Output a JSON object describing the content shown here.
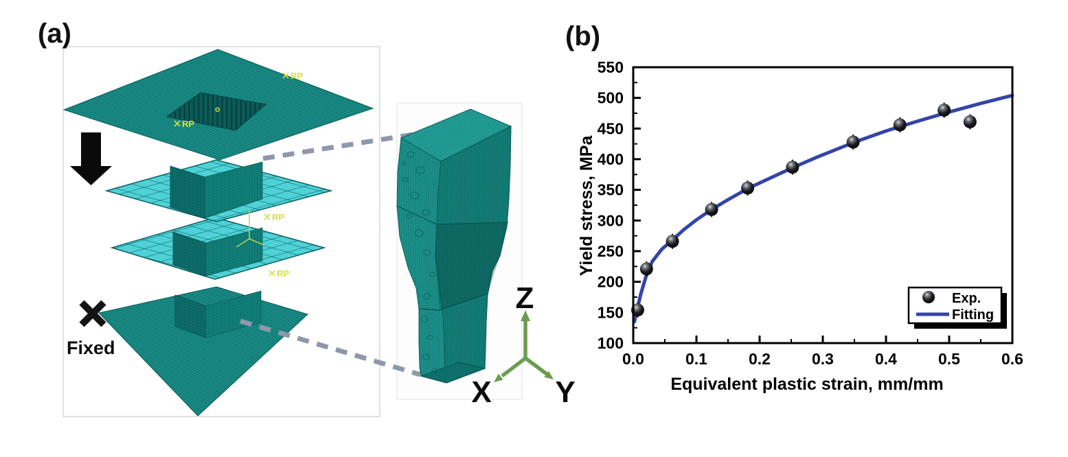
{
  "figure": {
    "panel_a": {
      "label": "(a)",
      "fixed_label": "Fixed",
      "rp_label": "RP",
      "origin_label": "o",
      "axis_labels": {
        "x": "X",
        "y": "Y",
        "z": "Z"
      }
    },
    "panel_b": {
      "label": "(b)"
    }
  },
  "chart_data": {
    "type": "scatter",
    "title": "",
    "xlabel": "Equivalent plastic strain, mm/mm",
    "ylabel": "Yield stress, MPa",
    "xlim": [
      0,
      0.6
    ],
    "ylim": [
      100,
      550
    ],
    "x_tick_step": 0.1,
    "x_minor_step": 0.05,
    "y_tick_step": 50,
    "y_minor_step": 25,
    "x_tick_labels": [
      "0.0",
      "0.1",
      "0.2",
      "0.3",
      "0.4",
      "0.5",
      "0.6"
    ],
    "y_tick_labels": [
      "100",
      "150",
      "200",
      "250",
      "300",
      "350",
      "400",
      "450",
      "500",
      "550"
    ],
    "grid": false,
    "legend_position": "lower right",
    "series": [
      {
        "name": "Exp.",
        "type": "scatter",
        "marker": "sphere",
        "color": "#111111",
        "error_mpa": 10,
        "points": [
          [
            0.007,
            154
          ],
          [
            0.021,
            221
          ],
          [
            0.062,
            266
          ],
          [
            0.124,
            318
          ],
          [
            0.181,
            353
          ],
          [
            0.252,
            387
          ],
          [
            0.348,
            428
          ],
          [
            0.422,
            456
          ],
          [
            0.492,
            480
          ],
          [
            0.533,
            461
          ]
        ]
      },
      {
        "name": "Fitting",
        "type": "line",
        "color": "#3444a8",
        "width": 5,
        "points": [
          [
            0.002,
            135
          ],
          [
            0.005,
            152
          ],
          [
            0.008,
            163
          ],
          [
            0.012,
            180
          ],
          [
            0.02,
            208
          ],
          [
            0.03,
            233
          ],
          [
            0.045,
            253
          ],
          [
            0.062,
            268
          ],
          [
            0.08,
            285
          ],
          [
            0.1,
            301
          ],
          [
            0.124,
            318
          ],
          [
            0.15,
            334
          ],
          [
            0.181,
            352
          ],
          [
            0.21,
            366
          ],
          [
            0.252,
            386
          ],
          [
            0.29,
            403
          ],
          [
            0.348,
            427
          ],
          [
            0.4,
            446
          ],
          [
            0.45,
            462
          ],
          [
            0.5,
            477
          ],
          [
            0.55,
            491
          ],
          [
            0.6,
            504
          ]
        ]
      }
    ]
  },
  "colors": {
    "mesh_teal": "#1a8d87",
    "mesh_teal_dark": "#0a5b57",
    "coarse_cyan": "#4ed2d6",
    "fit_blue": "#3444a8",
    "dash_gray": "#8f97ab",
    "triad_green": "#6b9d50",
    "rp_yellow": "#d6e049"
  }
}
